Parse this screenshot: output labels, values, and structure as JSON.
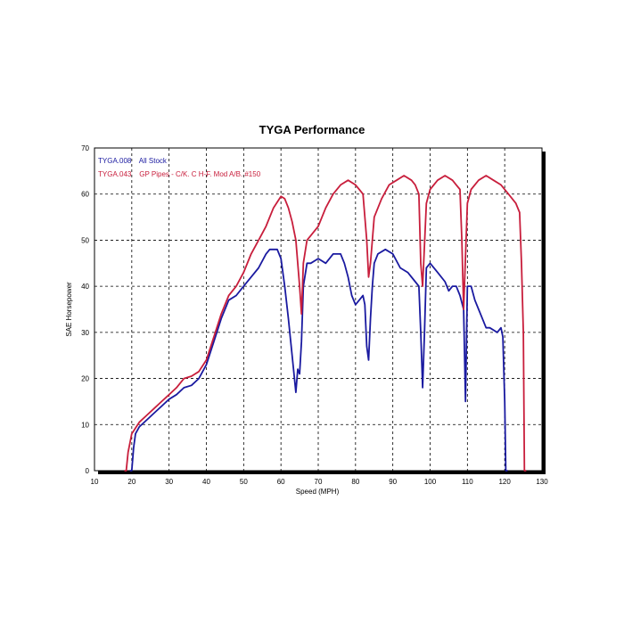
{
  "chart_data": {
    "type": "line",
    "title": "TYGA Performance",
    "xlabel": "Speed (MPH)",
    "ylabel": "SAE Horsepower",
    "xlim": [
      10,
      130
    ],
    "ylim": [
      0,
      70
    ],
    "xticks": [
      10,
      20,
      30,
      40,
      50,
      60,
      70,
      80,
      90,
      100,
      110,
      120,
      130
    ],
    "yticks": [
      0,
      10,
      20,
      30,
      40,
      50,
      60,
      70
    ],
    "grid": true,
    "legend_position": "top-left",
    "series": [
      {
        "name": "TYGA.008    All Stock",
        "color": "#1a1aa0",
        "points": [
          [
            19.5,
            0
          ],
          [
            20,
            0
          ],
          [
            20.5,
            5
          ],
          [
            21,
            8
          ],
          [
            22,
            9.5
          ],
          [
            24,
            11
          ],
          [
            26,
            12.5
          ],
          [
            28,
            14
          ],
          [
            30,
            15.5
          ],
          [
            32,
            16.5
          ],
          [
            34,
            18
          ],
          [
            36,
            18.5
          ],
          [
            38,
            20
          ],
          [
            40,
            23
          ],
          [
            42,
            28
          ],
          [
            44,
            33
          ],
          [
            46,
            37
          ],
          [
            48,
            38
          ],
          [
            50,
            40
          ],
          [
            52,
            42
          ],
          [
            54,
            44
          ],
          [
            56,
            47
          ],
          [
            57,
            48
          ],
          [
            59,
            48
          ],
          [
            60,
            46
          ],
          [
            61,
            40
          ],
          [
            62,
            33
          ],
          [
            63,
            25
          ],
          [
            64,
            17
          ],
          [
            64.5,
            22
          ],
          [
            65,
            21
          ],
          [
            65.5,
            28
          ],
          [
            66,
            40
          ],
          [
            67,
            45
          ],
          [
            68,
            45
          ],
          [
            70,
            46
          ],
          [
            72,
            45
          ],
          [
            74,
            47
          ],
          [
            76,
            47
          ],
          [
            77,
            45
          ],
          [
            78,
            42
          ],
          [
            79,
            38
          ],
          [
            80,
            36
          ],
          [
            81,
            37
          ],
          [
            82,
            38
          ],
          [
            82.5,
            36
          ],
          [
            83,
            27
          ],
          [
            83.5,
            24
          ],
          [
            84,
            33
          ],
          [
            84.5,
            40
          ],
          [
            85,
            45
          ],
          [
            86,
            47
          ],
          [
            88,
            48
          ],
          [
            90,
            47
          ],
          [
            92,
            44
          ],
          [
            94,
            43
          ],
          [
            96,
            41
          ],
          [
            97,
            40
          ],
          [
            97.5,
            30
          ],
          [
            98,
            18
          ],
          [
            98.5,
            30
          ],
          [
            99,
            44
          ],
          [
            100,
            45
          ],
          [
            102,
            43
          ],
          [
            104,
            41
          ],
          [
            105,
            39
          ],
          [
            106,
            40
          ],
          [
            107,
            40
          ],
          [
            108,
            38
          ],
          [
            109,
            35
          ],
          [
            109.5,
            15
          ],
          [
            110,
            40
          ],
          [
            111,
            40
          ],
          [
            112,
            37
          ],
          [
            113,
            35
          ],
          [
            114,
            33
          ],
          [
            115,
            31
          ],
          [
            116,
            31
          ],
          [
            118,
            30
          ],
          [
            119,
            31
          ],
          [
            119.5,
            29
          ],
          [
            120,
            15
          ],
          [
            120.3,
            0
          ],
          [
            120.8,
            0
          ]
        ]
      },
      {
        "name": "TYGA.043    GP Pipes - C/K. C H-F. Mod A/B. #150",
        "color": "#c81e3c",
        "points": [
          [
            18,
            0
          ],
          [
            18.5,
            0
          ],
          [
            19,
            4
          ],
          [
            20,
            8
          ],
          [
            22,
            10.5
          ],
          [
            24,
            12
          ],
          [
            26,
            13.5
          ],
          [
            28,
            15
          ],
          [
            30,
            16.5
          ],
          [
            32,
            18
          ],
          [
            34,
            20
          ],
          [
            36,
            20.5
          ],
          [
            38,
            21.5
          ],
          [
            40,
            24
          ],
          [
            42,
            29
          ],
          [
            44,
            34
          ],
          [
            46,
            38
          ],
          [
            48,
            40
          ],
          [
            50,
            43
          ],
          [
            52,
            47
          ],
          [
            54,
            50
          ],
          [
            56,
            53
          ],
          [
            58,
            57
          ],
          [
            60,
            59.5
          ],
          [
            61,
            59
          ],
          [
            62,
            57
          ],
          [
            63,
            54
          ],
          [
            64,
            50
          ],
          [
            65,
            40
          ],
          [
            65.5,
            34
          ],
          [
            66,
            45
          ],
          [
            67,
            50
          ],
          [
            68,
            51
          ],
          [
            70,
            53
          ],
          [
            72,
            57
          ],
          [
            74,
            60
          ],
          [
            76,
            62
          ],
          [
            78,
            63
          ],
          [
            80,
            62
          ],
          [
            81,
            61
          ],
          [
            82,
            60
          ],
          [
            83,
            50
          ],
          [
            83.5,
            42
          ],
          [
            84,
            45
          ],
          [
            85,
            55
          ],
          [
            87,
            59
          ],
          [
            89,
            62
          ],
          [
            91,
            63
          ],
          [
            93,
            64
          ],
          [
            95,
            63
          ],
          [
            96,
            62
          ],
          [
            97,
            60
          ],
          [
            97.5,
            45
          ],
          [
            98,
            40
          ],
          [
            99,
            58
          ],
          [
            100,
            61
          ],
          [
            102,
            63
          ],
          [
            104,
            64
          ],
          [
            106,
            63
          ],
          [
            107,
            62
          ],
          [
            108,
            61
          ],
          [
            108.5,
            50
          ],
          [
            109,
            35
          ],
          [
            110,
            58
          ],
          [
            111,
            61
          ],
          [
            113,
            63
          ],
          [
            115,
            64
          ],
          [
            117,
            63
          ],
          [
            119,
            62
          ],
          [
            121,
            60
          ],
          [
            123,
            58
          ],
          [
            124,
            56
          ],
          [
            124.5,
            45
          ],
          [
            125,
            30
          ],
          [
            125.3,
            0
          ],
          [
            125.8,
            0
          ]
        ]
      }
    ]
  }
}
